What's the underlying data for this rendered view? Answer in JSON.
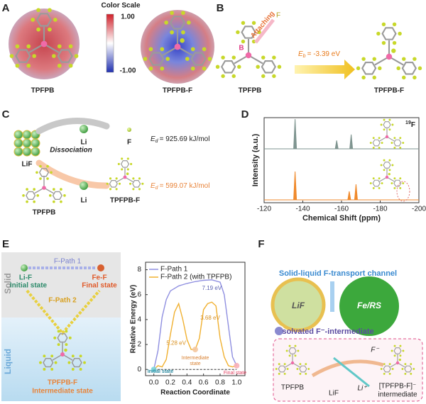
{
  "panels": {
    "a": {
      "label": "A",
      "scale_title": "Color Scale",
      "scale_top": "1.00",
      "scale_bottom": "-1.00",
      "captions": [
        "TPFPB",
        "TPFPB-F"
      ]
    },
    "b": {
      "label": "B",
      "attaching": "Attaching",
      "atom_f": "F",
      "atom_b": "B",
      "energy_symbol": "E",
      "energy_subscript": "b",
      "energy_value": "= -3.39 eV",
      "captions": [
        "TPFPB",
        "TPFPB-F"
      ]
    },
    "c": {
      "label": "C",
      "process": "Dissociation",
      "reactant": "LiF",
      "additive": "TPFPB",
      "routes": [
        {
          "products": [
            "Li",
            "F"
          ],
          "energy_symbol": "E",
          "energy_subscript": "d",
          "energy_value": "= 925.69 kJ/mol"
        },
        {
          "products": [
            "Li",
            "TPFPB-F"
          ],
          "energy_symbol": "E",
          "energy_subscript": "d",
          "energy_value": "= 599.07 kJ/mol"
        }
      ]
    },
    "d": {
      "label": "D"
    },
    "e": {
      "label": "E",
      "phases": [
        "Solid",
        "Liquid"
      ],
      "path1": "F-Path 1",
      "path2": "F-Path 2",
      "li_f": "Li-F",
      "initial": "Initial state",
      "fe_f": "Fe-F",
      "final": "Final state",
      "intermediate_species": "TPFPB-F",
      "intermediate": "Intermediate state"
    },
    "f": {
      "label": "F",
      "title": "Solid-liquid F-transport channel",
      "left": "LiF",
      "right": "Fe/RS",
      "intermediate": "solvated F⁻-intermediate",
      "inset": {
        "additive": "TPFPB",
        "salt": "LiF",
        "cation": "Li⁺",
        "anion": "F⁻",
        "complex": "[TPFPB-F]⁻",
        "complex_caption": "intermediate"
      }
    }
  },
  "chart_data": [
    {
      "type": "spectrum",
      "nucleus_mass": "19",
      "nucleus_symbol": "F",
      "x_label": "Chemical Shift (ppm)",
      "y_label": "Intensity (a.u.)",
      "xlim": [
        -120,
        -200
      ],
      "xticks": [
        -120,
        -140,
        -160,
        -180,
        -200
      ],
      "series": [
        {
          "color": "#7f9590",
          "x": [
            -136,
            -157.5,
            -165
          ],
          "values": [
            1,
            0.28,
            0.48
          ]
        },
        {
          "color": "#f08a2c",
          "x": [
            -136,
            -164,
            -167.5
          ],
          "values": [
            1,
            0.3,
            0.55
          ]
        }
      ]
    },
    {
      "type": "line",
      "x_label": "Reaction Coordinate",
      "y_label": "Relative Energy (eV)",
      "xlim": [
        -0.1,
        1.1
      ],
      "xticks": [
        {
          "value": 0,
          "label": "0.0"
        },
        {
          "value": 0.2,
          "label": "0.2"
        },
        {
          "value": 0.4,
          "label": "0.4"
        },
        {
          "value": 0.6,
          "label": "0.6"
        },
        {
          "value": 0.8,
          "label": "0.8"
        },
        {
          "value": 1,
          "label": "1.0"
        }
      ],
      "ylim": [
        -0.5,
        8.6
      ],
      "yticks": [
        0,
        2,
        4,
        6,
        8
      ],
      "legend": "upper left",
      "series": [
        {
          "name": "F-Path 1",
          "color": "#8f8fe0",
          "x": [
            0,
            0.05,
            0.1,
            0.15,
            0.2,
            0.3,
            0.4,
            0.5,
            0.6,
            0.7,
            0.8,
            0.85,
            0.9,
            0.95,
            1.0
          ],
          "values": [
            0,
            1.5,
            4.2,
            5.6,
            6.3,
            6.7,
            6.9,
            7.05,
            7.15,
            7.19,
            7.0,
            6.0,
            3.5,
            1.0,
            0.3
          ]
        },
        {
          "name": "F-Path 2 (with TPFPB)",
          "color": "#f0b030",
          "x": [
            0,
            0.05,
            0.1,
            0.15,
            0.2,
            0.25,
            0.3,
            0.35,
            0.4,
            0.45,
            0.5,
            0.55,
            0.6,
            0.65,
            0.7,
            0.75,
            0.8,
            0.85,
            0.9,
            0.95,
            1.0
          ],
          "values": [
            0,
            0.3,
            0.2,
            0.8,
            2.8,
            4.6,
            5.28,
            4.0,
            2.4,
            1.6,
            1.6,
            2.5,
            4.8,
            5.28,
            5.4,
            5.1,
            2.5,
            1.0,
            0.3,
            0.2,
            0.3
          ]
        }
      ],
      "annotations": [
        "7.19 eV",
        "5.28 eV",
        "3.68 eV"
      ],
      "state_labels": {
        "initial": "Initial state",
        "intermediate": [
          "Intermediate",
          "state"
        ],
        "final": "Final state"
      }
    }
  ]
}
